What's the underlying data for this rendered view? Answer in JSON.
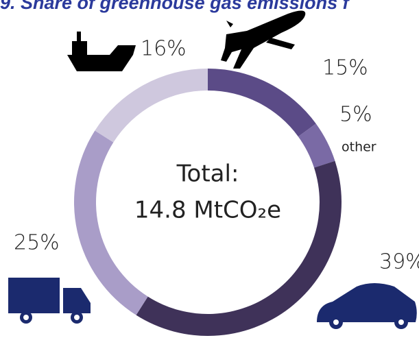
{
  "chart_data": {
    "type": "donut",
    "title": "9. Share of greenhouse gas emissions f",
    "center_label": [
      "Total:",
      "14.8 MtCO₂e"
    ],
    "categories": [
      null,
      "other",
      null,
      null,
      null
    ],
    "values": [
      15,
      5,
      39,
      25,
      16
    ],
    "value_labels": [
      "15%",
      "5%",
      "39%",
      "25%",
      "16%"
    ],
    "colors": [
      "#5b4b87",
      "#7a6aa5",
      "#3f3259",
      "#a99dc8",
      "#cfc8de"
    ]
  }
}
